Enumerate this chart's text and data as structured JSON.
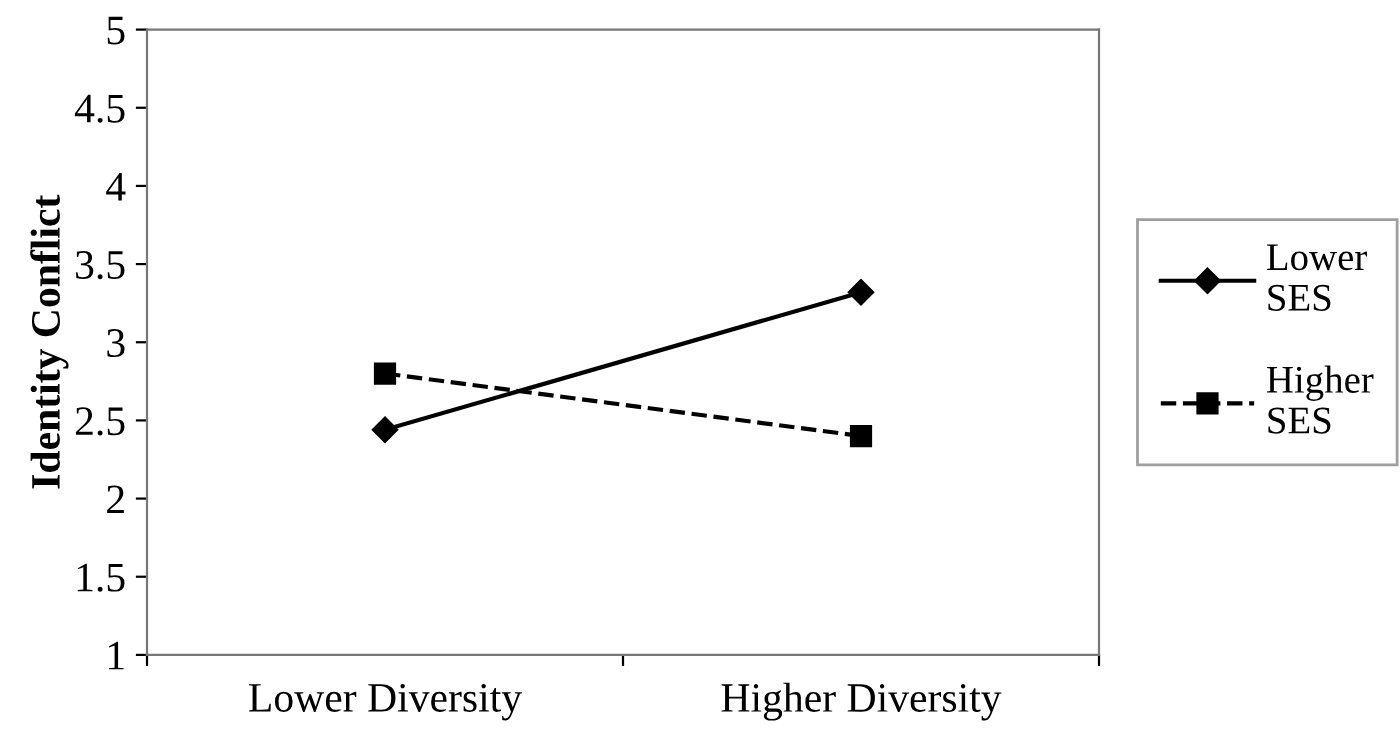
{
  "chart_data": {
    "type": "line",
    "ylabel": "Identity Conflict",
    "categories": [
      "Lower Diversity",
      "Higher Diversity"
    ],
    "series": [
      {
        "name": "Lower SES",
        "color": "#000000",
        "values": [
          2.44,
          3.32
        ],
        "marker": "diamond",
        "line_style": "solid"
      },
      {
        "name": "Higher SES",
        "color": "#000000",
        "values": [
          2.8,
          2.4
        ],
        "marker": "square",
        "line_style": "dashed"
      }
    ],
    "ylim": [
      1,
      5
    ],
    "yticks": [
      1,
      1.5,
      2,
      2.5,
      3,
      3.5,
      4,
      4.5,
      5
    ],
    "grid": false,
    "legend": "right"
  }
}
